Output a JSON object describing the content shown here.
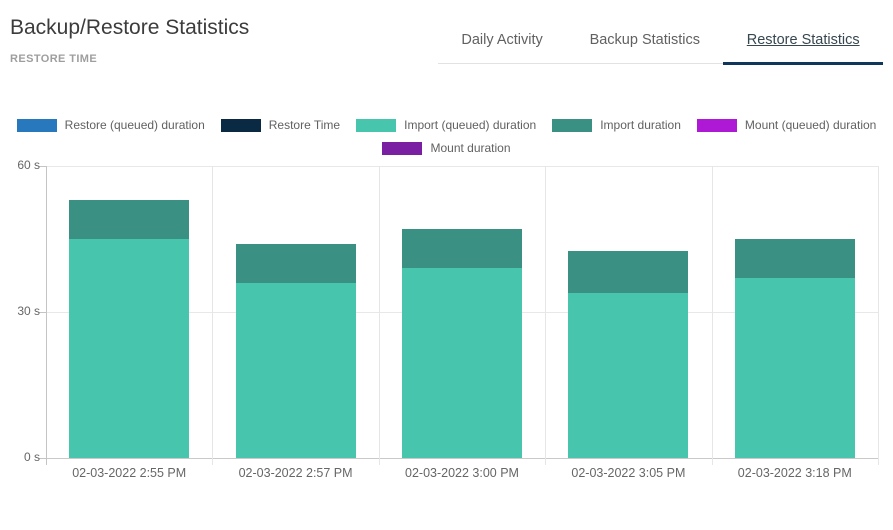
{
  "page": {
    "title": "Backup/Restore Statistics",
    "subtitle": "RESTORE TIME"
  },
  "tabs": [
    {
      "label": "Daily Activity",
      "active": false
    },
    {
      "label": "Backup Statistics",
      "active": false
    },
    {
      "label": "Restore Statistics",
      "active": true
    }
  ],
  "colors": {
    "active_tab_underline": "#10365c",
    "grid": "#e6e6e6",
    "baseline": "#c9c9c9",
    "axis_text": "#666666",
    "legend_text": "#616161"
  },
  "chart_data": {
    "type": "bar",
    "variant": "stacked",
    "title": "RESTORE TIME",
    "unit": "s",
    "categories": [
      "02-03-2022 2:55 PM",
      "02-03-2022 2:57 PM",
      "02-03-2022 3:00 PM",
      "02-03-2022 3:05 PM",
      "02-03-2022 3:18 PM"
    ],
    "series": [
      {
        "name": "Restore (queued) duration",
        "color": "#2878be",
        "values": [
          0,
          0,
          0,
          0,
          0
        ]
      },
      {
        "name": "Restore Time",
        "color": "#0a2a43",
        "values": [
          0,
          0,
          0,
          0,
          0
        ]
      },
      {
        "name": "Import (queued) duration",
        "color": "#47c6ad",
        "values": [
          45,
          36,
          39,
          34,
          37
        ]
      },
      {
        "name": "Import duration",
        "color": "#3a9183",
        "values": [
          8,
          8,
          8,
          8.5,
          8
        ]
      },
      {
        "name": "Mount (queued) duration",
        "color": "#ae19d5",
        "values": [
          0,
          0,
          0,
          0,
          0
        ]
      },
      {
        "name": "Mount duration",
        "color": "#7a1fa2",
        "values": [
          0,
          0,
          0,
          0,
          0
        ]
      }
    ],
    "y_ticks": [
      {
        "value": 0,
        "label": "0 s"
      },
      {
        "value": 30,
        "label": "30 s"
      },
      {
        "value": 60,
        "label": "60 s"
      }
    ],
    "ylim": [
      0,
      60
    ],
    "legend_position": "top",
    "grid": true
  }
}
